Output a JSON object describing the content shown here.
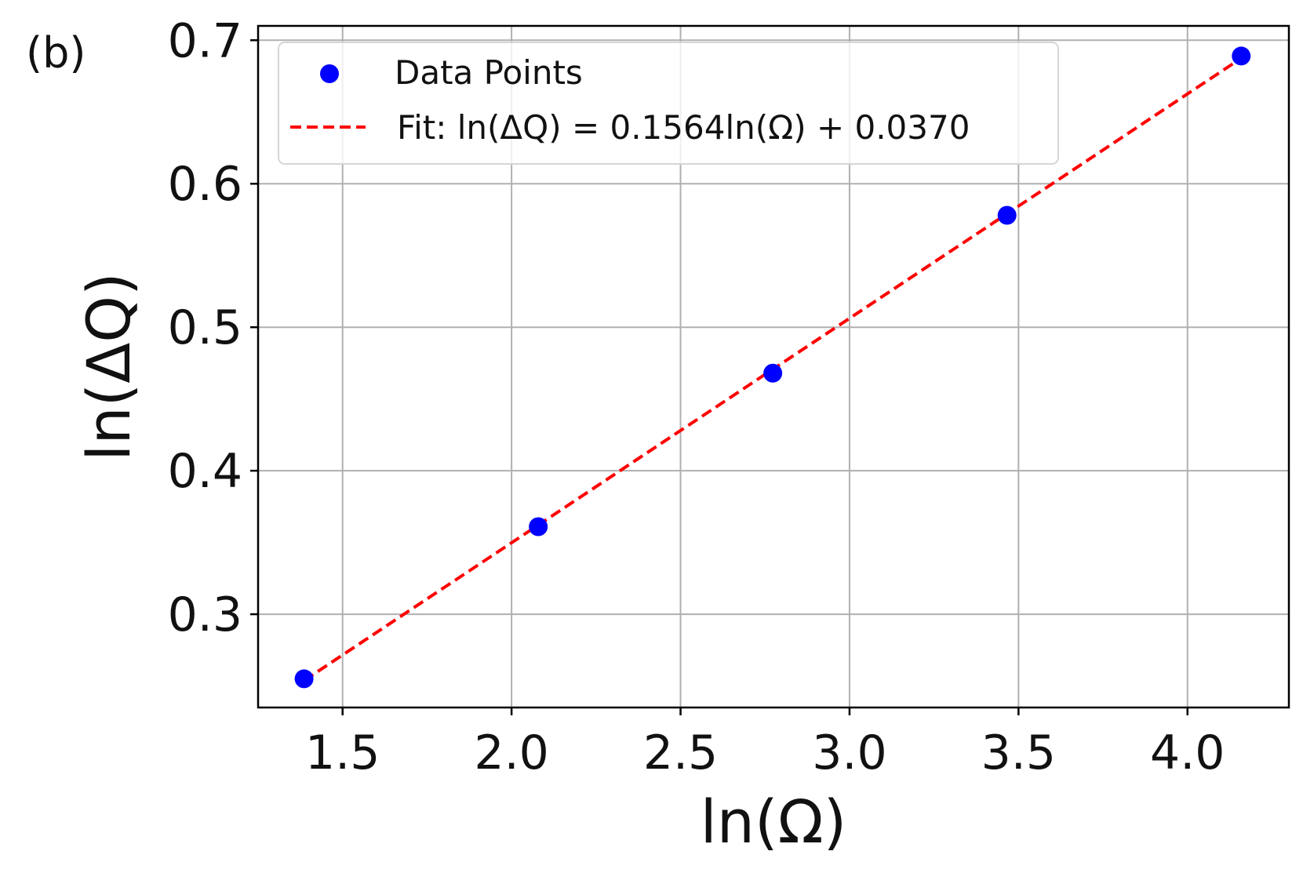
{
  "chart_data": {
    "type": "scatter",
    "panel_label": "(b)",
    "xlabel": "ln(Ω)",
    "ylabel": "ln(ΔQ)",
    "xlim": [
      1.25,
      4.3
    ],
    "ylim": [
      0.235,
      0.71
    ],
    "xticks": [
      "1.5",
      "2.0",
      "2.5",
      "3.0",
      "3.5",
      "4.0"
    ],
    "yticks": [
      "0.3",
      "0.4",
      "0.5",
      "0.6",
      "0.7"
    ],
    "grid": true,
    "legend_position": "top-left",
    "series": [
      {
        "name": "Data Points",
        "kind": "scatter",
        "color": "#0000ff",
        "x": [
          1.386,
          2.079,
          2.773,
          3.466,
          4.159
        ],
        "y": [
          0.255,
          0.361,
          0.468,
          0.578,
          0.689
        ]
      },
      {
        "name": "Fit: ln(ΔQ) = 0.1564ln(Ω) + 0.0370",
        "kind": "line",
        "style": "dashed",
        "color": "#ff0000",
        "slope": 0.1564,
        "intercept": 0.037
      }
    ]
  }
}
